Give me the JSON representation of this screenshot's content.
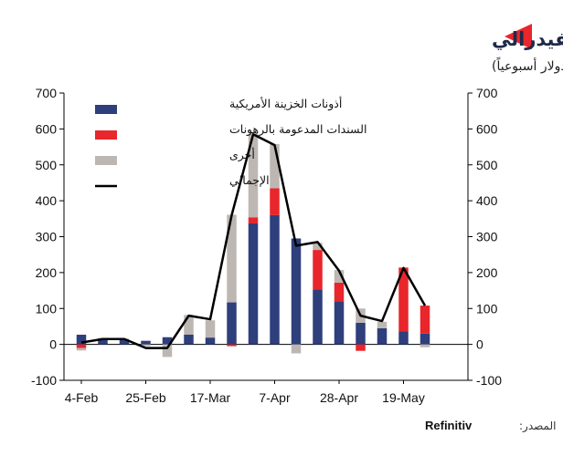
{
  "chart_data": {
    "type": "bar",
    "title": "تغيرات الأصول ضمن ميزانية الاحتياطي الفيدرالي",
    "subtitle": "(مليار دولار أسبوعياً)",
    "ylim": [
      -100,
      700
    ],
    "yticks": [
      -100,
      0,
      100,
      200,
      300,
      400,
      500,
      600,
      700
    ],
    "xtick_labels": [
      "4-Feb",
      "25-Feb",
      "17-Mar",
      "7-Apr",
      "28-Apr",
      "19-May"
    ],
    "xtick_indices": [
      0,
      3,
      6,
      9,
      12,
      15
    ],
    "stacked": true,
    "grid": false,
    "legend_position": "top-left",
    "colors": {
      "treasuries": "#2e3f7c",
      "mbs": "#e8262b",
      "other": "#bdb7b3",
      "total": "#000000",
      "accent": "#e8262b",
      "title": "#1f2a4a"
    },
    "series": [
      {
        "key": "treasuries",
        "name": "أذونات الخزينة الأمريكية",
        "type": "bar",
        "values": [
          27,
          15,
          13,
          10,
          20,
          27,
          19,
          117,
          337,
          360,
          295,
          153,
          120,
          60,
          45,
          36,
          30
        ]
      },
      {
        "key": "mbs",
        "name": "السندات المدعومة بالرهونات",
        "type": "bar",
        "values": [
          -10,
          0,
          0,
          0,
          0,
          0,
          0,
          -5,
          17,
          75,
          0,
          110,
          52,
          -18,
          0,
          178,
          78
        ]
      },
      {
        "key": "other",
        "name": "أخرى",
        "type": "bar",
        "values": [
          -7,
          3,
          3,
          -5,
          -35,
          55,
          48,
          244,
          233,
          123,
          -25,
          20,
          35,
          40,
          18,
          0,
          -8
        ]
      },
      {
        "key": "total",
        "name": "الإجمالي",
        "type": "line",
        "values": [
          5,
          15,
          15,
          -10,
          -10,
          80,
          70,
          360,
          585,
          555,
          275,
          285,
          205,
          80,
          65,
          213,
          108
        ]
      }
    ]
  },
  "source": {
    "label": "المصدر:",
    "name": "Refinitiv"
  }
}
